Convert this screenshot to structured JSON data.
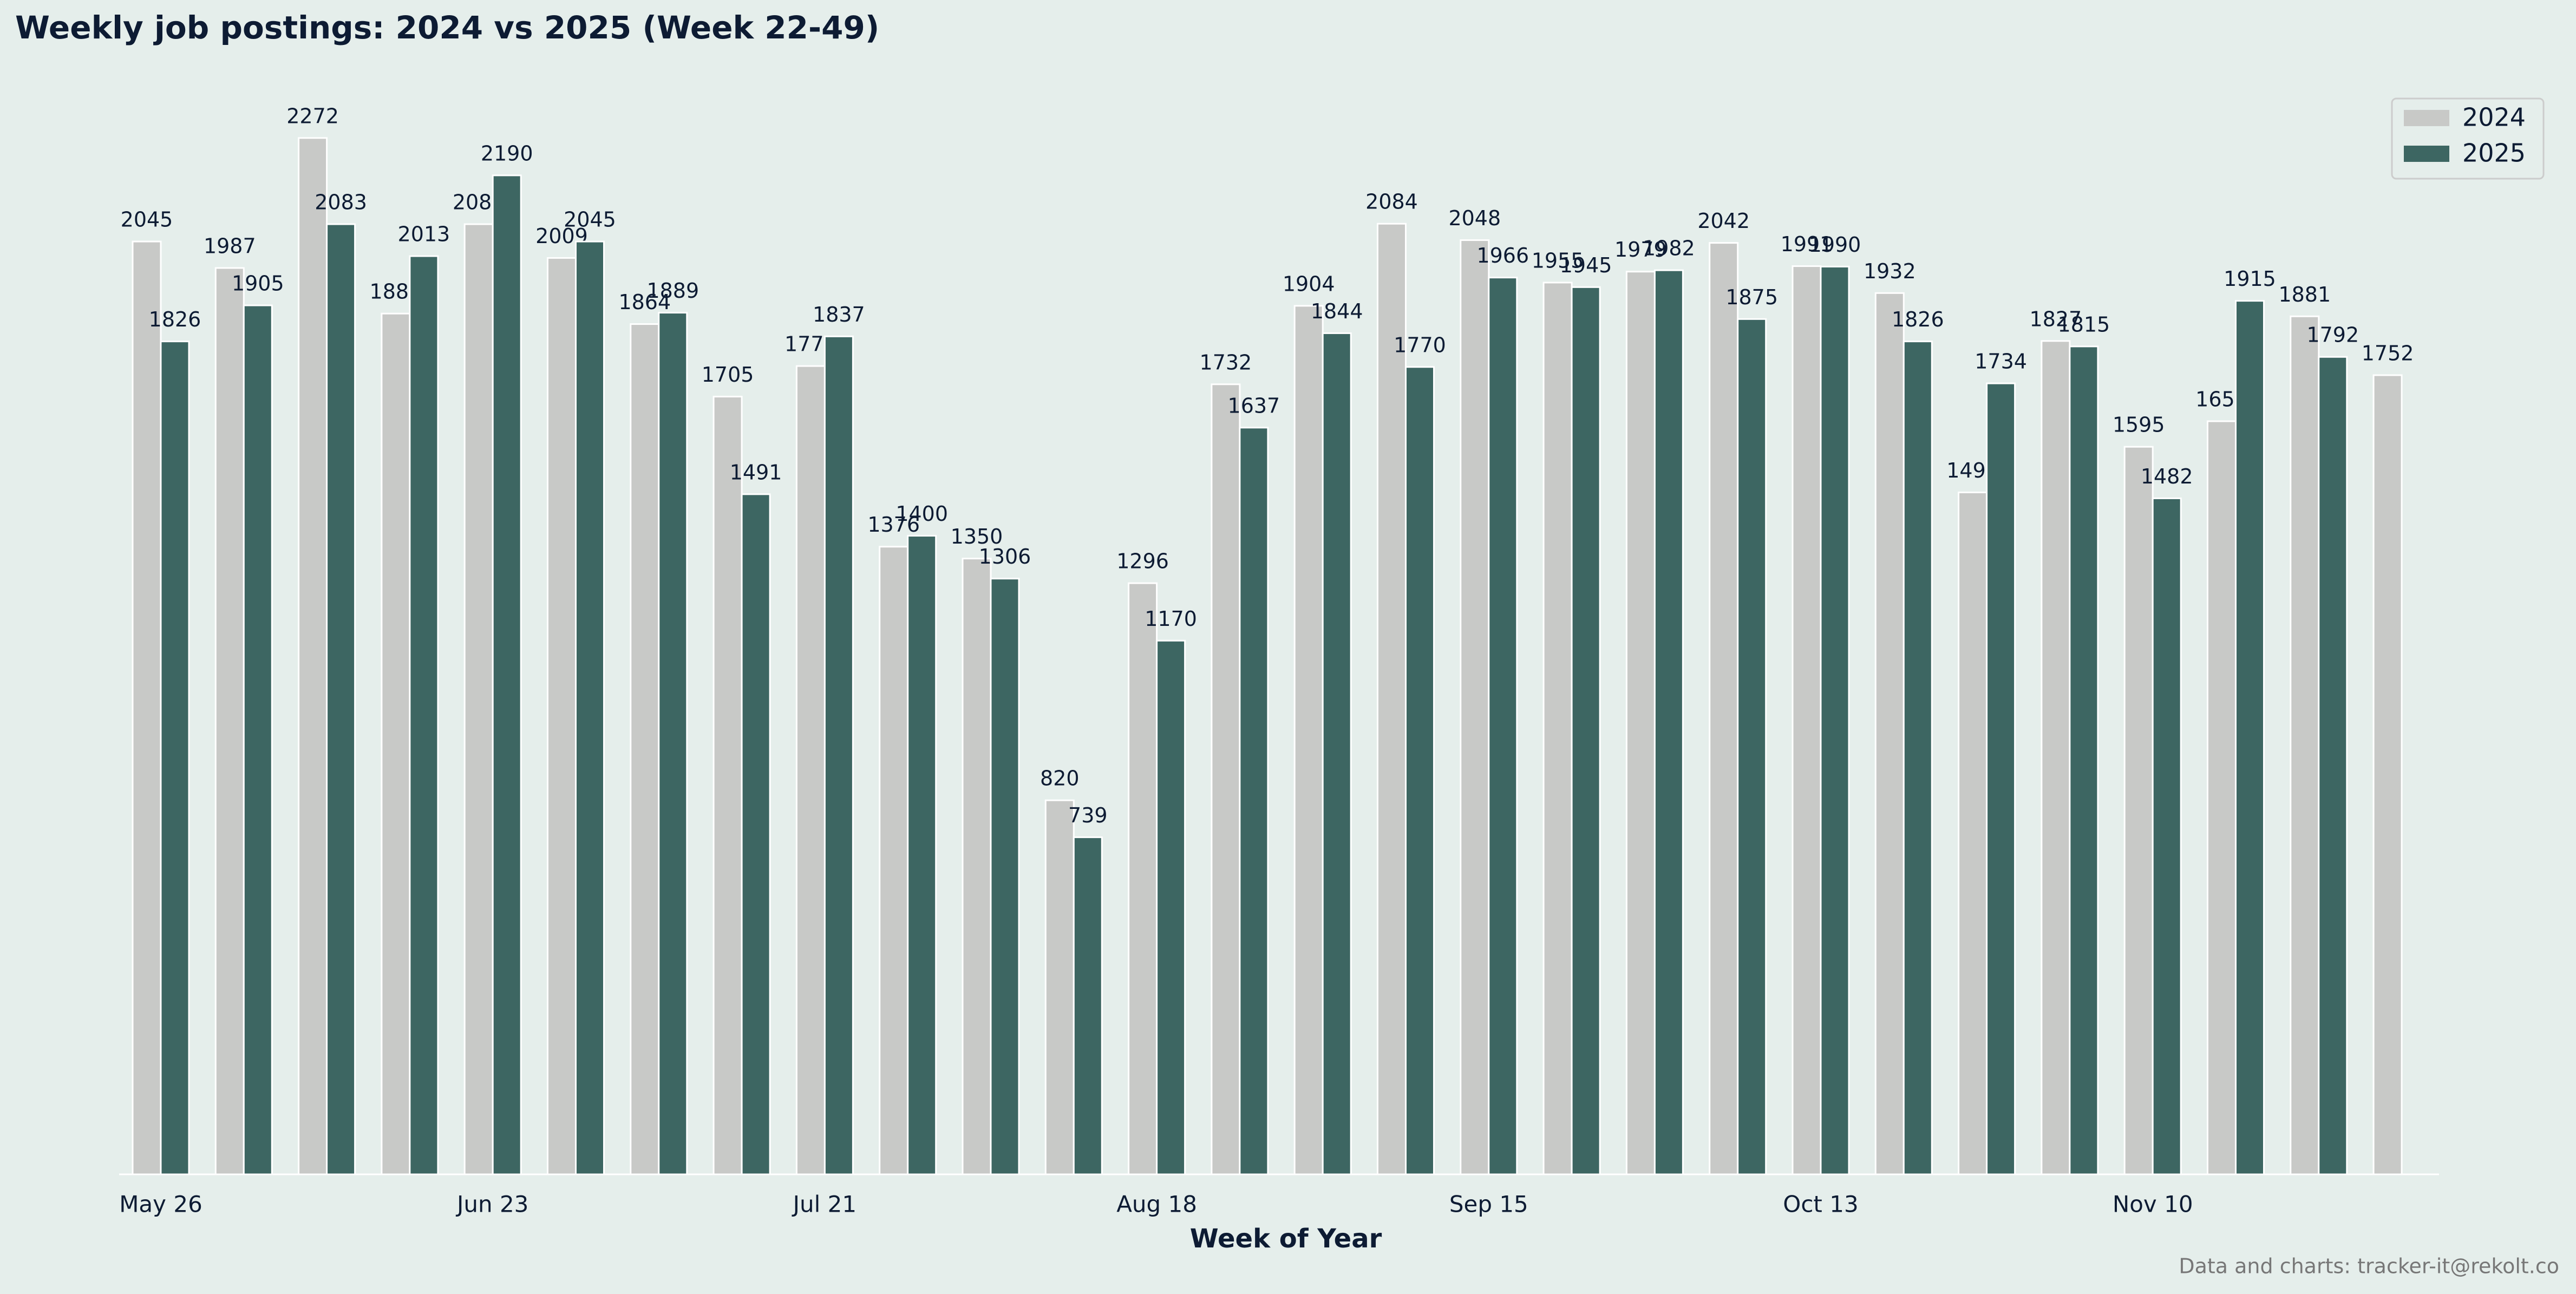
{
  "chart_data": {
    "type": "bar",
    "title": "Weekly job postings: 2024 vs 2025 (Week 22-49)",
    "x_label": "Week of Year",
    "source": "Data and charts: tracker-it@rekolt.co",
    "categories": [
      "May 26",
      null,
      null,
      null,
      "Jun 23",
      null,
      null,
      null,
      "Jul 21",
      null,
      null,
      null,
      "Aug 18",
      null,
      null,
      null,
      "Sep 15",
      null,
      null,
      null,
      "Oct 13",
      null,
      null,
      null,
      "Nov 10",
      null,
      null,
      null
    ],
    "series": [
      {
        "name": "2024",
        "color": "#c8c9c7",
        "values": [
          2045,
          1987,
          2272,
          1887,
          2083,
          2009,
          1864,
          1705,
          1772,
          1376,
          1350,
          820,
          1296,
          1732,
          1904,
          2084,
          2048,
          1955,
          1979,
          2042,
          1991,
          1932,
          1495,
          1827,
          1595,
          1651,
          1881,
          1752
        ]
      },
      {
        "name": "2025",
        "color": "#3d6662",
        "values": [
          1826,
          1905,
          2083,
          2013,
          2190,
          2045,
          1889,
          1491,
          1837,
          1400,
          1306,
          739,
          1170,
          1637,
          1844,
          1770,
          1966,
          1945,
          1982,
          1875,
          1990,
          1826,
          1734,
          1815,
          1482,
          1915,
          1792,
          null
        ]
      }
    ],
    "ylim": [
      0,
      2400
    ],
    "legend": "upper right"
  }
}
